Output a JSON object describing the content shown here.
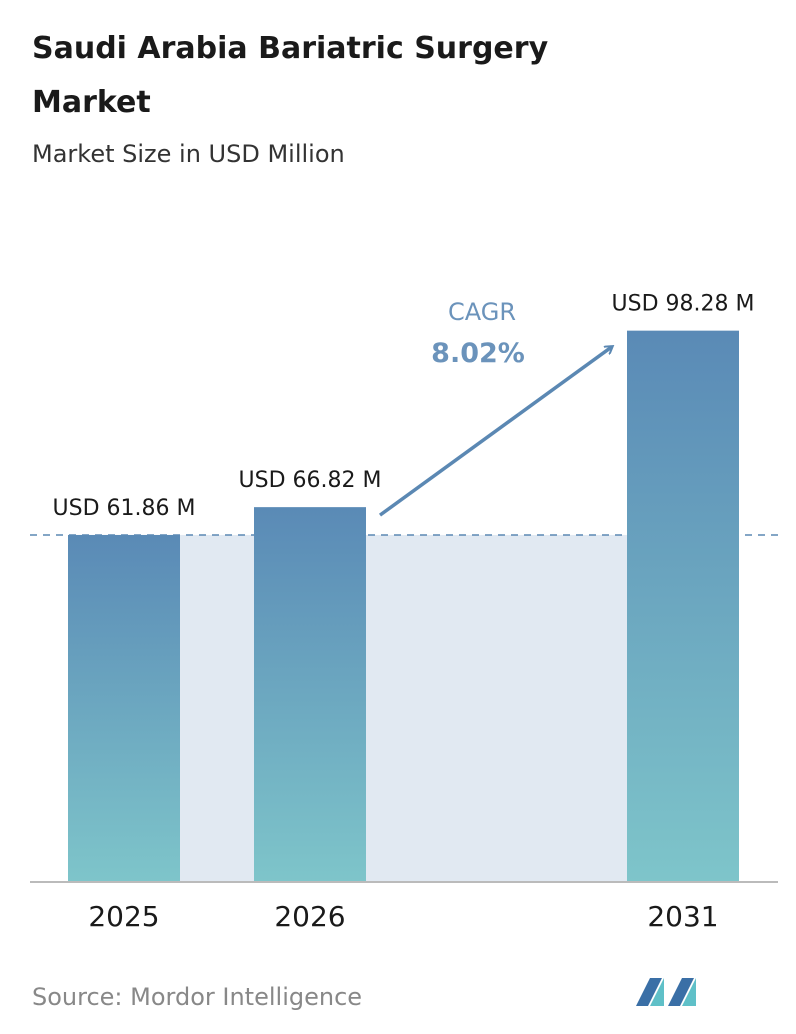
{
  "chart_data": {
    "type": "bar",
    "title": "Saudi Arabia Bariatric Surgery Market",
    "subtitle": "Market Size in USD Million",
    "categories": [
      "2025",
      "2026",
      "2031"
    ],
    "values": [
      61.86,
      66.82,
      98.28
    ],
    "value_labels": [
      "USD 61.86 M",
      "USD 66.82 M",
      "USD 98.28 M"
    ],
    "annotations": [
      "CAGR",
      "8.02%"
    ],
    "source": "Source:  Mordor Intelligence"
  }
}
